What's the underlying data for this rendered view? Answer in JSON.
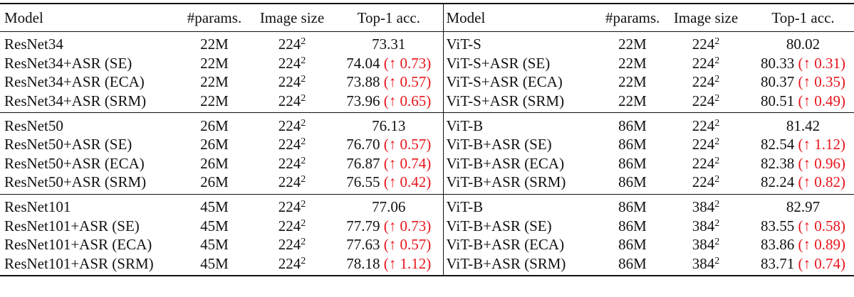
{
  "table": {
    "header": [
      "Model",
      "#params.",
      "Image size",
      "Top-1 acc.",
      "Model",
      "#params.",
      "Image size",
      "Top-1 acc."
    ],
    "groups": [
      [
        {
          "left": {
            "model": "ResNet34",
            "params": "22M",
            "size": "224",
            "size_exp": "2",
            "acc": "73.31"
          },
          "right": {
            "model": "ViT-S",
            "params": "22M",
            "size": "224",
            "size_exp": "2",
            "acc": "80.02"
          }
        },
        {
          "left": {
            "model": "ResNet34+ASR (SE)",
            "params": "22M",
            "size": "224",
            "size_exp": "2",
            "acc": "74.04",
            "delta": "(↑ 0.73)"
          },
          "right": {
            "model": "ViT-S+ASR (SE)",
            "params": "22M",
            "size": "224",
            "size_exp": "2",
            "acc": "80.33",
            "delta": "(↑ 0.31)"
          }
        },
        {
          "left": {
            "model": "ResNet34+ASR (ECA)",
            "params": "22M",
            "size": "224",
            "size_exp": "2",
            "acc": "73.88",
            "delta": "(↑ 0.57)"
          },
          "right": {
            "model": "ViT-S+ASR (ECA)",
            "params": "22M",
            "size": "224",
            "size_exp": "2",
            "acc": "80.37",
            "delta": "(↑ 0.35)"
          }
        },
        {
          "left": {
            "model": "ResNet34+ASR (SRM)",
            "params": "22M",
            "size": "224",
            "size_exp": "2",
            "acc": "73.96",
            "delta": "(↑ 0.65)"
          },
          "right": {
            "model": "ViT-S+ASR (SRM)",
            "params": "22M",
            "size": "224",
            "size_exp": "2",
            "acc": "80.51",
            "delta": "(↑ 0.49)"
          }
        }
      ],
      [
        {
          "left": {
            "model": "ResNet50",
            "params": "26M",
            "size": "224",
            "size_exp": "2",
            "acc": "76.13"
          },
          "right": {
            "model": "ViT-B",
            "params": "86M",
            "size": "224",
            "size_exp": "2",
            "acc": "81.42"
          }
        },
        {
          "left": {
            "model": "ResNet50+ASR (SE)",
            "params": "26M",
            "size": "224",
            "size_exp": "2",
            "acc": "76.70",
            "delta": "(↑ 0.57)"
          },
          "right": {
            "model": "ViT-B+ASR (SE)",
            "params": "86M",
            "size": "224",
            "size_exp": "2",
            "acc": "82.54",
            "delta": "(↑ 1.12)"
          }
        },
        {
          "left": {
            "model": "ResNet50+ASR (ECA)",
            "params": "26M",
            "size": "224",
            "size_exp": "2",
            "acc": "76.87",
            "delta": "(↑ 0.74)"
          },
          "right": {
            "model": "ViT-B+ASR (ECA)",
            "params": "86M",
            "size": "224",
            "size_exp": "2",
            "acc": "82.38",
            "delta": "(↑ 0.96)"
          }
        },
        {
          "left": {
            "model": "ResNet50+ASR (SRM)",
            "params": "26M",
            "size": "224",
            "size_exp": "2",
            "acc": "76.55",
            "delta": "(↑ 0.42)"
          },
          "right": {
            "model": "ViT-B+ASR (SRM)",
            "params": "86M",
            "size": "224",
            "size_exp": "2",
            "acc": "82.24",
            "delta": "(↑ 0.82)"
          }
        }
      ],
      [
        {
          "left": {
            "model": "ResNet101",
            "params": "45M",
            "size": "224",
            "size_exp": "2",
            "acc": "77.06"
          },
          "right": {
            "model": "ViT-B",
            "params": "86M",
            "size": "384",
            "size_exp": "2",
            "acc": "82.97"
          }
        },
        {
          "left": {
            "model": "ResNet101+ASR (SE)",
            "params": "45M",
            "size": "224",
            "size_exp": "2",
            "acc": "77.79",
            "delta": "(↑ 0.73)"
          },
          "right": {
            "model": "ViT-B+ASR (SE)",
            "params": "86M",
            "size": "384",
            "size_exp": "2",
            "acc": "83.55",
            "delta": "(↑ 0.58)"
          }
        },
        {
          "left": {
            "model": "ResNet101+ASR (ECA)",
            "params": "45M",
            "size": "224",
            "size_exp": "2",
            "acc": "77.63",
            "delta": "(↑ 0.57)"
          },
          "right": {
            "model": "ViT-B+ASR (ECA)",
            "params": "86M",
            "size": "384",
            "size_exp": "2",
            "acc": "83.86",
            "delta": "(↑ 0.89)"
          }
        },
        {
          "left": {
            "model": "ResNet101+ASR (SRM)",
            "params": "45M",
            "size": "224",
            "size_exp": "2",
            "acc": "78.18",
            "delta": "(↑ 1.12)"
          },
          "right": {
            "model": "ViT-B+ASR (SRM)",
            "params": "86M",
            "size": "384",
            "size_exp": "2",
            "acc": "83.71",
            "delta": "(↑ 0.74)"
          }
        }
      ]
    ]
  }
}
